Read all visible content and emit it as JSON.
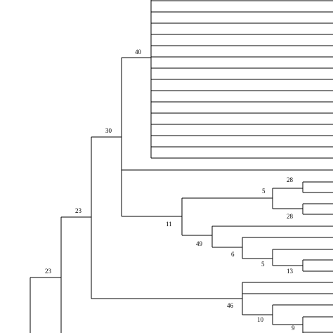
{
  "tree": {
    "edge_color": "#000000",
    "bootstrap_labels": [
      "40",
      "30",
      "23",
      "23",
      "28",
      "5",
      "28",
      "11",
      "49",
      "6",
      "5",
      "13",
      "46",
      "10",
      "9"
    ]
  }
}
